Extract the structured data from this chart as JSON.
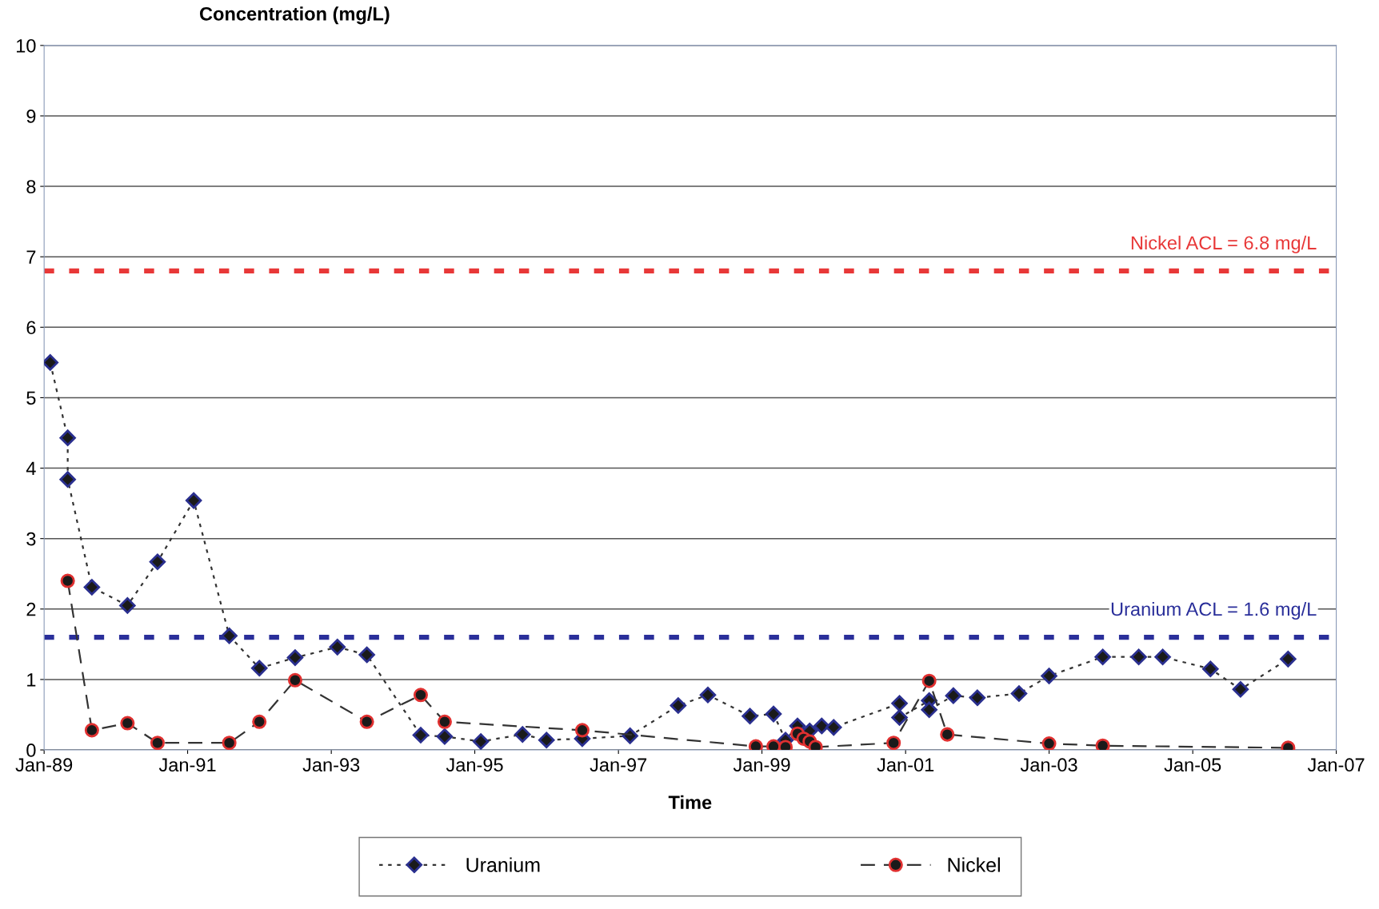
{
  "chart_data": {
    "type": "line",
    "ylabel": "Concentration (mg/L)",
    "xlabel": "Time",
    "xlim": [
      "1989-01",
      "2007-01"
    ],
    "xticks": [
      {
        "value": "1989-01",
        "label": "Jan-89"
      },
      {
        "value": "1991-01",
        "label": "Jan-91"
      },
      {
        "value": "1993-01",
        "label": "Jan-93"
      },
      {
        "value": "1995-01",
        "label": "Jan-95"
      },
      {
        "value": "1997-01",
        "label": "Jan-97"
      },
      {
        "value": "1999-01",
        "label": "Jan-99"
      },
      {
        "value": "2001-01",
        "label": "Jan-01"
      },
      {
        "value": "2003-01",
        "label": "Jan-03"
      },
      {
        "value": "2005-01",
        "label": "Jan-05"
      },
      {
        "value": "2007-01",
        "label": "Jan-07"
      }
    ],
    "ylim": [
      0,
      10
    ],
    "yticks": [
      0,
      1,
      2,
      3,
      4,
      5,
      6,
      7,
      8,
      9,
      10
    ],
    "grid": "y",
    "legend": "bottom",
    "series": [
      {
        "name": "Uranium",
        "color": "#2a2f8f",
        "marker": "diamond",
        "line_style": "dotted",
        "x": [
          "1989-02",
          "1989-05",
          "1989-05",
          "1989-09",
          "1990-03",
          "1990-08",
          "1991-02",
          "1991-08",
          "1992-01",
          "1992-07",
          "1993-02",
          "1993-07",
          "1994-04",
          "1994-08",
          "1995-02",
          "1995-09",
          "1996-01",
          "1996-07",
          "1997-03",
          "1997-11",
          "1998-04",
          "1998-11",
          "1999-03",
          "1999-05",
          "1999-07",
          "1999-09",
          "1999-11",
          "2000-01",
          "2000-12",
          "2000-12",
          "2001-05",
          "2001-05",
          "2001-09",
          "2002-01",
          "2002-08",
          "2003-01",
          "2003-10",
          "2004-04",
          "2004-08",
          "2005-04",
          "2005-09",
          "2006-05"
        ],
        "values": [
          5.5,
          4.43,
          3.84,
          2.31,
          2.05,
          2.67,
          3.54,
          1.62,
          1.16,
          1.31,
          1.46,
          1.35,
          0.21,
          0.19,
          0.12,
          0.22,
          0.14,
          0.16,
          0.2,
          0.63,
          0.78,
          0.48,
          0.51,
          0.14,
          0.34,
          0.27,
          0.34,
          0.32,
          0.66,
          0.46,
          0.7,
          0.57,
          0.77,
          0.74,
          0.8,
          1.05,
          1.32,
          1.32,
          1.32,
          1.15,
          0.86,
          1.29
        ]
      },
      {
        "name": "Nickel",
        "color": "#e03030",
        "marker": "circle",
        "line_style": "dashed",
        "x": [
          "1989-05",
          "1989-09",
          "1990-03",
          "1990-08",
          "1991-08",
          "1992-01",
          "1992-07",
          "1993-07",
          "1994-04",
          "1994-08",
          "1996-07",
          "1998-12",
          "1999-03",
          "1999-05",
          "1999-07",
          "1999-08",
          "1999-09",
          "1999-10",
          "2000-11",
          "2001-05",
          "2001-08",
          "2003-01",
          "2003-10",
          "2006-05"
        ],
        "values": [
          2.4,
          0.28,
          0.38,
          0.1,
          0.1,
          0.4,
          0.99,
          0.4,
          0.78,
          0.4,
          0.28,
          0.05,
          0.05,
          0.04,
          0.23,
          0.16,
          0.12,
          0.04,
          0.1,
          0.98,
          0.22,
          0.09,
          0.06,
          0.03
        ]
      }
    ],
    "ref_lines": [
      {
        "axis": "y",
        "value": 6.8,
        "label": "Nickel ACL = 6.8 mg/L",
        "color": "#e83838",
        "line_style": "dotted"
      },
      {
        "axis": "y",
        "value": 1.6,
        "label": "Uranium ACL = 1.6 mg/L",
        "color": "#2a2f9a",
        "line_style": "dotted"
      }
    ]
  }
}
